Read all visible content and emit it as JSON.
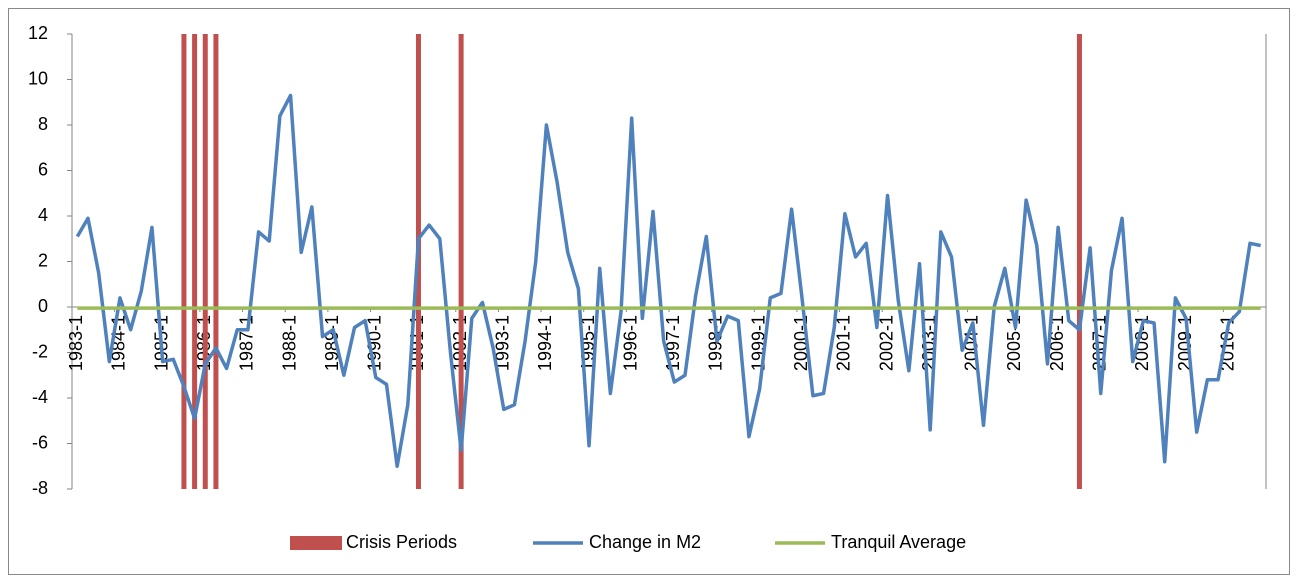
{
  "chart_data": {
    "type": "line",
    "categories": [
      "1983-1",
      null,
      null,
      null,
      "1984-1",
      null,
      null,
      null,
      "1985-1",
      null,
      null,
      null,
      "1986-1",
      null,
      null,
      null,
      "1987-1",
      null,
      null,
      null,
      "1988-1",
      null,
      null,
      null,
      "1989-1",
      null,
      null,
      null,
      "1990-1",
      null,
      null,
      null,
      "1991-1",
      null,
      null,
      null,
      "1992-1",
      null,
      null,
      null,
      "1993-1",
      null,
      null,
      null,
      "1994-1",
      null,
      null,
      null,
      "1995-1",
      null,
      null,
      null,
      "1996-1",
      null,
      null,
      null,
      "1997-1",
      null,
      null,
      null,
      "1998-1",
      null,
      null,
      null,
      "1999-1",
      null,
      null,
      null,
      "2000-1",
      null,
      null,
      null,
      "2001-1",
      null,
      null,
      null,
      "2002-1",
      null,
      null,
      null,
      "2003-1",
      null,
      null,
      null,
      "2004-1",
      null,
      null,
      null,
      "2005-1",
      null,
      null,
      null,
      "2006-1",
      null,
      null,
      null,
      "2007-1",
      null,
      null,
      null,
      "2008-1",
      null,
      null,
      null,
      "2009-1",
      null,
      null,
      null,
      "2010-1",
      null,
      null,
      null
    ],
    "series": [
      {
        "name": "Crisis Periods",
        "type": "bar",
        "color": "#c0504d",
        "values": [
          null,
          null,
          null,
          null,
          null,
          null,
          null,
          null,
          null,
          null,
          12,
          12,
          12,
          12,
          null,
          null,
          null,
          null,
          null,
          null,
          null,
          null,
          null,
          null,
          null,
          null,
          null,
          null,
          null,
          null,
          null,
          null,
          12,
          null,
          null,
          null,
          12,
          null,
          null,
          null,
          null,
          null,
          null,
          null,
          null,
          null,
          null,
          null,
          null,
          null,
          null,
          null,
          null,
          null,
          null,
          null,
          null,
          null,
          null,
          null,
          null,
          null,
          null,
          null,
          null,
          null,
          null,
          null,
          null,
          null,
          null,
          null,
          null,
          null,
          null,
          null,
          null,
          null,
          null,
          null,
          null,
          null,
          null,
          null,
          null,
          null,
          null,
          null,
          null,
          null,
          null,
          null,
          null,
          null,
          12,
          null,
          null,
          null,
          null,
          null,
          null,
          null,
          null,
          null,
          null,
          null,
          null,
          null,
          null,
          null,
          null,
          null
        ]
      },
      {
        "name": "Change in M2",
        "type": "line",
        "color": "#4f81bd",
        "values": [
          3.1,
          3.9,
          1.5,
          -2.4,
          0.4,
          -1.0,
          0.7,
          3.5,
          -2.4,
          -2.3,
          -3.5,
          -4.9,
          -2.5,
          -1.8,
          -2.7,
          -1.0,
          -1.0,
          3.3,
          2.9,
          8.4,
          9.3,
          2.4,
          4.4,
          -1.3,
          -1.0,
          -3.0,
          -0.9,
          -0.6,
          -3.1,
          -3.4,
          -7.0,
          -4.3,
          3.0,
          3.6,
          3.0,
          -2.0,
          -6.3,
          -0.5,
          0.2,
          -1.8,
          -4.5,
          -4.3,
          -1.5,
          2.0,
          8.0,
          5.5,
          2.4,
          0.8,
          -6.1,
          1.7,
          -3.8,
          -0.2,
          8.3,
          -0.5,
          4.2,
          -1.5,
          -3.3,
          -3.0,
          0.5,
          3.1,
          -1.5,
          -0.4,
          -0.6,
          -5.7,
          -3.6,
          0.4,
          0.6,
          4.3,
          0.3,
          -3.9,
          -3.8,
          -0.9,
          4.1,
          2.2,
          2.8,
          -0.9,
          4.9,
          0.3,
          -2.8,
          1.9,
          -5.4,
          3.3,
          2.2,
          -1.9,
          -0.7,
          -5.2,
          0.0,
          1.7,
          -0.9,
          4.7,
          2.7,
          -2.5,
          3.5,
          -0.6,
          -1.0,
          2.6,
          -3.8,
          1.6,
          3.9,
          -2.4,
          -0.6,
          -0.7,
          -6.8,
          0.4,
          -0.5,
          -5.5,
          -3.2,
          -3.2,
          -0.7,
          -0.2,
          2.8,
          2.7
        ]
      },
      {
        "name": "Tranquil Average",
        "type": "line",
        "color": "#9bbb59",
        "values": [
          -0.05,
          -0.05,
          -0.05,
          -0.05,
          -0.05,
          -0.05,
          -0.05,
          -0.05,
          -0.05,
          -0.05,
          -0.05,
          -0.05,
          -0.05,
          -0.05,
          -0.05,
          -0.05,
          -0.05,
          -0.05,
          -0.05,
          -0.05,
          -0.05,
          -0.05,
          -0.05,
          -0.05,
          -0.05,
          -0.05,
          -0.05,
          -0.05,
          -0.05,
          -0.05,
          -0.05,
          -0.05,
          -0.05,
          -0.05,
          -0.05,
          -0.05,
          -0.05,
          -0.05,
          -0.05,
          -0.05,
          -0.05,
          -0.05,
          -0.05,
          -0.05,
          -0.05,
          -0.05,
          -0.05,
          -0.05,
          -0.05,
          -0.05,
          -0.05,
          -0.05,
          -0.05,
          -0.05,
          -0.05,
          -0.05,
          -0.05,
          -0.05,
          -0.05,
          -0.05,
          -0.05,
          -0.05,
          -0.05,
          -0.05,
          -0.05,
          -0.05,
          -0.05,
          -0.05,
          -0.05,
          -0.05,
          -0.05,
          -0.05,
          -0.05,
          -0.05,
          -0.05,
          -0.05,
          -0.05,
          -0.05,
          -0.05,
          -0.05,
          -0.05,
          -0.05,
          -0.05,
          -0.05,
          -0.05,
          -0.05,
          -0.05,
          -0.05,
          -0.05,
          -0.05,
          -0.05,
          -0.05,
          -0.05,
          -0.05,
          -0.05,
          -0.05,
          -0.05,
          -0.05,
          -0.05,
          -0.05,
          -0.05,
          -0.05,
          -0.05,
          -0.05,
          -0.05,
          -0.05,
          -0.05,
          -0.05,
          -0.05,
          -0.05,
          -0.05,
          -0.05
        ]
      }
    ],
    "ylim": [
      -8,
      12
    ],
    "yticks": [
      -8,
      -6,
      -4,
      -2,
      0,
      2,
      4,
      6,
      8,
      10,
      12
    ],
    "grid": false,
    "legend": "bottom"
  }
}
